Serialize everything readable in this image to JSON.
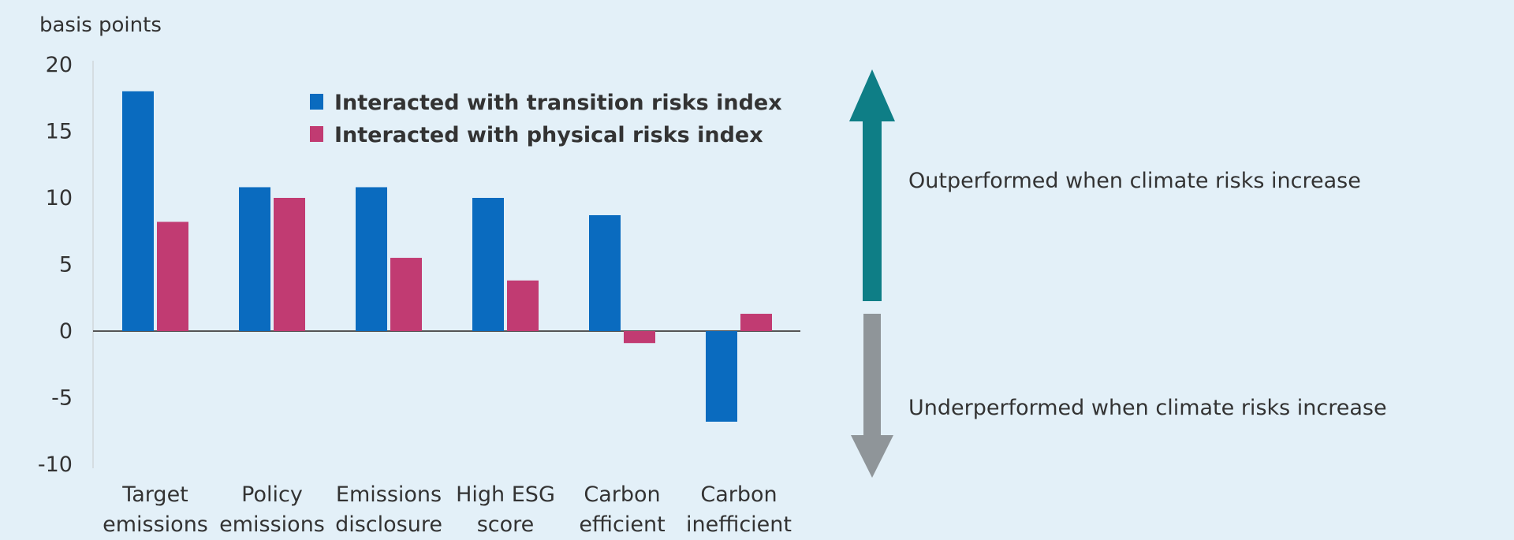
{
  "chart_data": {
    "type": "bar",
    "ylabel": "basis points",
    "ylim": [
      -10,
      20
    ],
    "yticks": [
      20,
      15,
      10,
      5,
      0,
      -5,
      -10
    ],
    "categories": [
      [
        "Target",
        "emissions"
      ],
      [
        "Policy",
        "emissions"
      ],
      [
        "Emissions",
        "disclosure"
      ],
      [
        "High ESG",
        "score"
      ],
      [
        "Carbon",
        "efficient"
      ],
      [
        "Carbon",
        "inefficient"
      ]
    ],
    "series": [
      {
        "name": "Interacted with transition risks index",
        "color": "#0a6bbf",
        "values": [
          18,
          10.8,
          10.8,
          10,
          8.7,
          -6.8
        ]
      },
      {
        "name": "Interacted with physical risks index",
        "color": "#c13b72",
        "values": [
          8.2,
          10,
          5.5,
          3.8,
          -0.9,
          1.3
        ]
      }
    ],
    "legend_position": "top-center",
    "annotations": {
      "up_text": "Outperformed when climate risks increase",
      "down_text": "Underperformed when climate risks increase",
      "up_color": "#0e7e86",
      "down_color": "#8f9599"
    }
  }
}
